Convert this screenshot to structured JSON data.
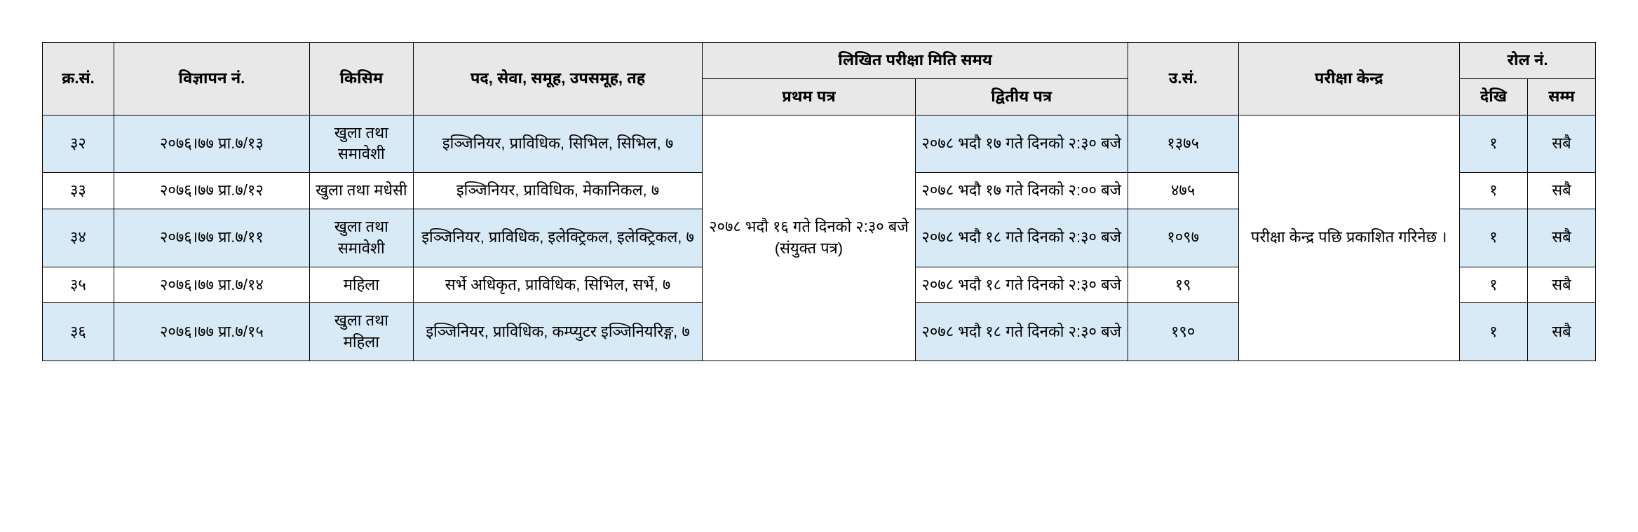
{
  "headers": {
    "sn": "क्र.सं.",
    "adv": "विज्ञापन नं.",
    "type": "किसिम",
    "post": "पद, सेवा, समूह, उपसमूह, तह",
    "exam": "लिखित परीक्षा मिति समय",
    "p1": "प्रथम पत्र",
    "p2": "द्वितीय पत्र",
    "usn": "उ.सं.",
    "center": "परीक्षा केन्द्र",
    "roll": "रोल नं.",
    "from": "देखि",
    "to": "सम्म"
  },
  "merged": {
    "first_paper": "२०७८ भदौ १६ गते दिनको २:३० बजे (संयुक्त पत्र)",
    "exam_center": "परीक्षा केन्द्र पछि प्रकाशित गरिनेछ ।"
  },
  "rows": [
    {
      "sn": "३२",
      "adv": "२०७६।७७ प्रा.७/१३",
      "type": "खुला तथा समावेशी",
      "post": "इञ्जिनियर, प्राविधिक, सिभिल, सिभिल, ७",
      "p2": "२०७८ भदौ १७ गते दिनको २:३० बजे",
      "usn": "१३७५",
      "from": "१",
      "to": "सबै"
    },
    {
      "sn": "३३",
      "adv": "२०७६।७७ प्रा.७/१२",
      "type": "खुला तथा मधेसी",
      "post": "इञ्जिनियर, प्राविधिक, मेकानिकल, ७",
      "p2": "२०७८ भदौ १७ गते दिनको २:०० बजे",
      "usn": "४७५",
      "from": "१",
      "to": "सबै"
    },
    {
      "sn": "३४",
      "adv": "२०७६।७७ प्रा.७/११",
      "type": "खुला तथा समावेशी",
      "post": "इञ्जिनियर, प्राविधिक, इलेक्ट्रिकल, इलेक्ट्रिकल, ७",
      "p2": "२०७८ भदौ १८ गते दिनको २:३० बजे",
      "usn": "१०९७",
      "from": "१",
      "to": "सबै"
    },
    {
      "sn": "३५",
      "adv": "२०७६।७७ प्रा.७/१४",
      "type": "महिला",
      "post": "सर्भे अधिकृत, प्राविधिक, सिभिल, सर्भे, ७",
      "p2": "२०७८ भदौ १८ गते दिनको २:३० बजे",
      "usn": "१९",
      "from": "१",
      "to": "सबै"
    },
    {
      "sn": "३६",
      "adv": "२०७६।७७ प्रा.७/१५",
      "type": "खुला तथा महिला",
      "post": "इञ्जिनियर, प्राविधिक, कम्प्युटर इञ्जिनियरिङ्ग, ७",
      "p2": "२०७८ भदौ १८ गते दिनको २:३० बजे",
      "usn": "१९०",
      "from": "१",
      "to": "सबै"
    }
  ],
  "style": {
    "header_bg": "#e8e8e8",
    "alt_row_bg": "#d9eaf7",
    "plain_row_bg": "#ffffff",
    "border_color": "#000000",
    "font_size": 22
  }
}
